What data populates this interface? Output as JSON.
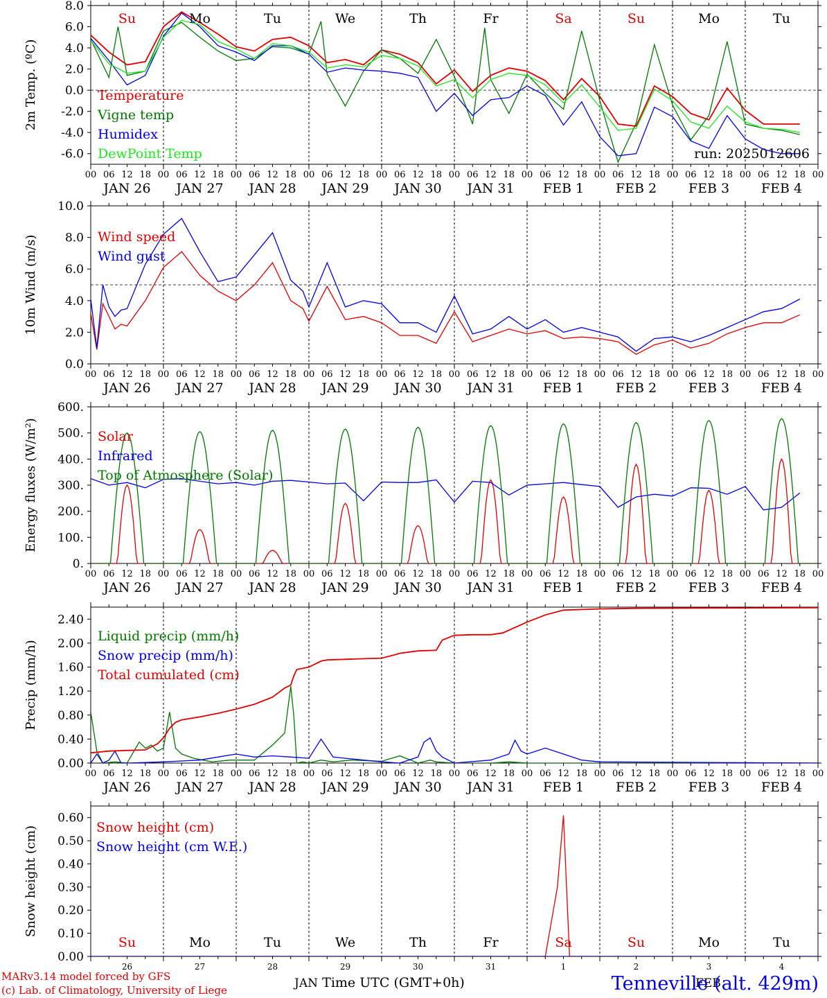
{
  "run_label": "run: 2025012606",
  "time_axis": {
    "hour_ticks": [
      "00",
      "06",
      "12",
      "18"
    ],
    "dates": [
      "JAN 26",
      "JAN 27",
      "JAN 28",
      "JAN 29",
      "JAN 30",
      "JAN 31",
      "FEB  1",
      "FEB  2",
      "FEB  3",
      "FEB  4"
    ],
    "weekdays": [
      "Su",
      "Mo",
      "Tu",
      "We",
      "Th",
      "Fr",
      "Sa",
      "Su",
      "Mo",
      "Tu"
    ],
    "weekday_colors": [
      "#e00000",
      "#000000",
      "#000000",
      "#000000",
      "#000000",
      "#000000",
      "#e00000",
      "#e00000",
      "#000000",
      "#000000"
    ],
    "day_numbers": [
      "26",
      "27",
      "28",
      "29",
      "30",
      "31",
      "1",
      "2",
      "3",
      "4"
    ],
    "month_labels": [
      "JAN",
      "FEB"
    ],
    "xlabel": "Time UTC (GMT+0h)"
  },
  "footer": {
    "model": "MARv3.14 model forced by GFS",
    "credit": "(c) Lab. of Climatology, University of Liege",
    "station": "Tenneville (alt. 429m)"
  },
  "chart_data": [
    {
      "type": "line",
      "ylabel": "2m Temp. (ºC)",
      "ylim": [
        -7,
        8
      ],
      "yticks": [
        "8.0",
        "6.0",
        "4.0",
        "2.0",
        "0.0",
        "-2.0",
        "-4.0",
        "-6.0"
      ],
      "ytick_values": [
        8,
        6,
        4,
        2,
        0,
        -2,
        -4,
        -6
      ],
      "ref_line": 0,
      "x_unit": "hours since JAN 26 00 UTC",
      "series": [
        {
          "name": "Temperature",
          "color": "#e00000",
          "x": [
            0,
            6,
            12,
            18,
            24,
            30,
            36,
            42,
            48,
            54,
            60,
            66,
            72,
            78,
            84,
            90,
            96,
            102,
            108,
            114,
            120,
            126,
            132,
            138,
            144,
            150,
            156,
            162,
            168,
            174,
            180,
            186,
            192,
            198,
            204,
            210,
            216,
            222,
            228,
            234
          ],
          "y": [
            5.2,
            3.6,
            2.4,
            2.7,
            6.0,
            7.4,
            6.4,
            5.3,
            4.1,
            3.7,
            4.8,
            5.0,
            4.2,
            2.6,
            2.9,
            2.4,
            3.8,
            3.4,
            2.6,
            0.6,
            1.9,
            -0.1,
            1.4,
            2.1,
            1.8,
            0.9,
            -0.9,
            1.1,
            -0.6,
            -3.2,
            -3.4,
            0.4,
            -0.6,
            -2.2,
            -2.8,
            0.2,
            -1.9,
            -3.2,
            -3.2,
            -3.2
          ]
        },
        {
          "name": "Vigne temp",
          "color": "#007800",
          "x": [
            0,
            6,
            9,
            12,
            18,
            24,
            30,
            36,
            42,
            48,
            54,
            60,
            66,
            72,
            76,
            78,
            84,
            90,
            96,
            102,
            108,
            114,
            120,
            126,
            130,
            132,
            138,
            144,
            150,
            156,
            162,
            168,
            174,
            180,
            186,
            192,
            198,
            204,
            210,
            216,
            222,
            228,
            234
          ],
          "y": [
            4.8,
            1.2,
            6.0,
            1.4,
            1.8,
            5.6,
            6.4,
            5.0,
            3.7,
            2.8,
            3.0,
            4.1,
            4.0,
            3.4,
            6.5,
            1.5,
            -1.5,
            1.8,
            3.8,
            3.0,
            1.6,
            4.8,
            1.3,
            -3.2,
            5.9,
            1.0,
            -2.2,
            1.5,
            -0.3,
            -1.8,
            5.6,
            -1.0,
            -6.8,
            -3.1,
            4.3,
            -1.4,
            -4.7,
            -2.4,
            4.6,
            -3.2,
            -3.6,
            -3.8,
            -4.2
          ]
        },
        {
          "name": "Humidex",
          "color": "#0000e0",
          "x": [
            0,
            6,
            12,
            18,
            24,
            30,
            36,
            42,
            48,
            54,
            60,
            66,
            72,
            78,
            84,
            90,
            96,
            102,
            108,
            114,
            120,
            126,
            132,
            138,
            144,
            150,
            156,
            162,
            168,
            174,
            180,
            186,
            192,
            198,
            204,
            210,
            216,
            222,
            228,
            234
          ],
          "y": [
            4.9,
            2.8,
            0.5,
            1.4,
            5.1,
            7.3,
            6.0,
            4.2,
            3.6,
            2.8,
            4.2,
            4.2,
            3.4,
            1.7,
            2.1,
            1.9,
            1.8,
            1.6,
            1.2,
            -2.0,
            -0.3,
            -2.4,
            -0.9,
            -0.7,
            0.4,
            -0.5,
            -3.3,
            -1.1,
            -4.4,
            -6.2,
            -6.0,
            -1.6,
            -2.5,
            -4.8,
            -5.5,
            -2.4,
            -4.6,
            -5.6,
            -6.0,
            -6.0
          ]
        },
        {
          "name": "DewPoint Temp",
          "color": "#1ee61e",
          "x": [
            0,
            6,
            12,
            18,
            24,
            30,
            36,
            42,
            48,
            54,
            60,
            66,
            72,
            78,
            84,
            90,
            96,
            102,
            108,
            114,
            120,
            126,
            132,
            138,
            144,
            150,
            156,
            162,
            168,
            174,
            180,
            186,
            192,
            198,
            204,
            210,
            216,
            222,
            228,
            234
          ],
          "y": [
            4.7,
            2.5,
            1.6,
            1.8,
            5.0,
            6.6,
            6.2,
            4.6,
            3.9,
            3.0,
            4.4,
            4.2,
            3.6,
            2.1,
            2.4,
            2.2,
            3.3,
            3.0,
            2.3,
            0.4,
            1.0,
            -0.7,
            1.0,
            1.6,
            1.4,
            0.5,
            -1.2,
            0.5,
            -1.6,
            -3.8,
            -3.6,
            0.1,
            -1.0,
            -3.0,
            -3.6,
            -1.5,
            -3.0,
            -3.6,
            -3.7,
            -4.0
          ]
        }
      ]
    },
    {
      "type": "line",
      "ylabel": "10m Wind (m/s)",
      "ylim": [
        0,
        10
      ],
      "yticks": [
        "10.0",
        "8.0",
        "6.0",
        "4.0",
        "2.0",
        "0.0"
      ],
      "ytick_values": [
        10,
        8,
        6,
        4,
        2,
        0
      ],
      "ref_line": 5,
      "x_unit": "hours since JAN 26 00 UTC",
      "series": [
        {
          "name": "Wind speed",
          "color": "#e00000",
          "x": [
            0,
            2,
            4,
            6,
            8,
            10,
            12,
            18,
            24,
            30,
            36,
            42,
            48,
            54,
            60,
            66,
            70,
            72,
            78,
            84,
            90,
            96,
            102,
            108,
            114,
            120,
            126,
            132,
            138,
            144,
            150,
            156,
            162,
            168,
            174,
            180,
            186,
            192,
            198,
            204,
            210,
            216,
            222,
            228,
            234
          ],
          "y": [
            3.2,
            0.9,
            3.8,
            3.0,
            2.2,
            2.5,
            2.4,
            4.0,
            6.1,
            7.1,
            5.6,
            4.6,
            4.0,
            5.0,
            6.4,
            4.0,
            3.5,
            2.7,
            4.9,
            2.8,
            3.0,
            2.6,
            1.8,
            1.8,
            1.3,
            3.3,
            1.4,
            1.8,
            2.2,
            1.9,
            2.1,
            1.6,
            1.7,
            1.6,
            1.4,
            0.6,
            1.2,
            1.5,
            1.0,
            1.3,
            1.9,
            2.3,
            2.6,
            2.6,
            3.1
          ]
        },
        {
          "name": "Wind gust",
          "color": "#0000e0",
          "x": [
            0,
            2,
            4,
            6,
            8,
            10,
            12,
            18,
            24,
            30,
            36,
            42,
            48,
            54,
            60,
            66,
            70,
            72,
            78,
            84,
            90,
            96,
            102,
            108,
            114,
            120,
            126,
            132,
            138,
            144,
            150,
            156,
            162,
            168,
            174,
            180,
            186,
            192,
            198,
            204,
            210,
            216,
            222,
            228,
            234
          ],
          "y": [
            4.1,
            1.0,
            5.0,
            3.6,
            3.0,
            3.4,
            3.5,
            6.3,
            8.2,
            9.2,
            7.1,
            5.2,
            5.5,
            6.9,
            8.3,
            5.3,
            4.6,
            3.6,
            6.4,
            3.6,
            4.0,
            3.8,
            2.6,
            2.6,
            2.0,
            4.3,
            1.9,
            2.2,
            3.0,
            2.2,
            2.8,
            2.0,
            2.3,
            2.0,
            1.7,
            0.8,
            1.6,
            1.7,
            1.4,
            1.8,
            2.3,
            2.8,
            3.3,
            3.5,
            4.1
          ]
        }
      ]
    },
    {
      "type": "line",
      "ylabel": "Energy fluxes (W/m²)",
      "ylim": [
        0,
        600
      ],
      "yticks": [
        "600.",
        "500.",
        "400.",
        "300.",
        "200.",
        "100.",
        "0."
      ],
      "ytick_values": [
        600,
        500,
        400,
        300,
        200,
        100,
        0
      ],
      "x_unit": "hours since JAN 26 00 UTC",
      "series": [
        {
          "name": "Solar",
          "color": "#e00000",
          "peaks": [
            300,
            130,
            50,
            230,
            145,
            320,
            255,
            380,
            280,
            400
          ]
        },
        {
          "name": "Infrared",
          "color": "#0000e0",
          "x": [
            0,
            6,
            12,
            18,
            24,
            30,
            36,
            42,
            48,
            54,
            60,
            66,
            72,
            78,
            84,
            90,
            96,
            102,
            108,
            114,
            120,
            126,
            132,
            138,
            144,
            150,
            156,
            162,
            168,
            174,
            180,
            186,
            192,
            198,
            204,
            210,
            216,
            222,
            228,
            234
          ],
          "y": [
            325,
            300,
            310,
            290,
            322,
            325,
            315,
            305,
            310,
            300,
            315,
            318,
            312,
            305,
            308,
            240,
            312,
            310,
            310,
            320,
            235,
            315,
            310,
            262,
            300,
            305,
            310,
            302,
            295,
            215,
            255,
            265,
            258,
            290,
            288,
            265,
            295,
            205,
            215,
            270
          ]
        },
        {
          "name": "Top of Atmosphere (Solar)",
          "color": "#007800",
          "peaks": [
            500,
            505,
            510,
            515,
            522,
            528,
            535,
            540,
            548,
            555
          ]
        }
      ]
    },
    {
      "type": "line",
      "ylabel": "Precip (mm/h)",
      "ylim": [
        0,
        2.6
      ],
      "yticks": [
        "2.40",
        "2.00",
        "1.60",
        "1.20",
        "0.80",
        "0.40",
        "0.00"
      ],
      "ytick_values": [
        2.4,
        2.0,
        1.6,
        1.2,
        0.8,
        0.4,
        0.0
      ],
      "x_unit": "hours since JAN 26 00 UTC",
      "series": [
        {
          "name": "Liquid precip (mm/h)",
          "color": "#007800",
          "x": [
            0,
            2,
            4,
            8,
            12,
            16,
            18,
            20,
            22,
            24,
            26,
            28,
            30,
            34,
            40,
            46,
            54,
            60,
            62,
            64,
            66,
            67,
            68,
            70,
            72,
            76,
            80,
            86,
            96,
            102,
            108,
            112,
            114,
            120,
            126,
            132,
            138,
            144,
            240
          ],
          "y": [
            0.85,
            0.2,
            0.0,
            0.02,
            0.0,
            0.35,
            0.25,
            0.3,
            0.2,
            0.25,
            0.85,
            0.25,
            0.15,
            0.08,
            0.02,
            0.05,
            0.05,
            0.3,
            0.4,
            0.5,
            1.28,
            0.8,
            0.0,
            0.02,
            0.0,
            0.05,
            0.02,
            0.05,
            0.03,
            0.12,
            0.0,
            0.05,
            0.02,
            0.0,
            0.0,
            0.0,
            0.02,
            0.0,
            0.0
          ]
        },
        {
          "name": "Snow precip (mm/h)",
          "color": "#0000e0",
          "x": [
            0,
            2,
            4,
            6,
            8,
            10,
            12,
            24,
            36,
            42,
            48,
            54,
            60,
            66,
            72,
            76,
            80,
            84,
            90,
            96,
            102,
            108,
            110,
            112,
            114,
            116,
            120,
            132,
            138,
            140,
            142,
            144,
            150,
            156,
            162,
            168,
            240
          ],
          "y": [
            0.0,
            0.15,
            0.0,
            0.05,
            0.2,
            0.0,
            0.0,
            0.02,
            0.05,
            0.1,
            0.15,
            0.1,
            0.12,
            0.1,
            0.08,
            0.4,
            0.1,
            0.08,
            0.05,
            0.02,
            0.0,
            0.1,
            0.35,
            0.42,
            0.2,
            0.1,
            0.0,
            0.05,
            0.15,
            0.38,
            0.2,
            0.15,
            0.25,
            0.15,
            0.05,
            0.02,
            0.0
          ]
        },
        {
          "name": "Total cumulated (cm)",
          "color": "#e00000",
          "x": [
            0,
            6,
            12,
            18,
            22,
            24,
            26,
            28,
            30,
            36,
            42,
            48,
            54,
            60,
            64,
            66,
            67,
            68,
            72,
            76,
            78,
            84,
            96,
            100,
            102,
            108,
            114,
            116,
            120,
            126,
            132,
            136,
            144,
            150,
            156,
            168,
            180,
            240
          ],
          "y": [
            0.17,
            0.2,
            0.21,
            0.22,
            0.32,
            0.42,
            0.58,
            0.68,
            0.72,
            0.77,
            0.83,
            0.9,
            0.98,
            1.1,
            1.25,
            1.3,
            1.45,
            1.56,
            1.6,
            1.7,
            1.72,
            1.73,
            1.75,
            1.8,
            1.83,
            1.87,
            1.88,
            2.05,
            2.13,
            2.14,
            2.14,
            2.17,
            2.35,
            2.47,
            2.55,
            2.57,
            2.58,
            2.59
          ]
        }
      ]
    },
    {
      "type": "line",
      "ylabel": "Snow height (cm)",
      "ylim": [
        0,
        0.65
      ],
      "yticks": [
        "0.60",
        "0.50",
        "0.40",
        "0.30",
        "0.20",
        "0.10",
        "0.00"
      ],
      "ytick_values": [
        0.6,
        0.5,
        0.4,
        0.3,
        0.2,
        0.1,
        0.0
      ],
      "x_unit": "hours since JAN 26 00 UTC",
      "series": [
        {
          "name": "Snow height (cm)",
          "color": "#e00000",
          "x": [
            0,
            150,
            154,
            156,
            158,
            240
          ],
          "y": [
            0,
            0,
            0.3,
            0.61,
            0,
            0
          ]
        },
        {
          "name": "Snow height (cm W.E.)",
          "color": "#0000e0",
          "x": [
            0,
            240
          ],
          "y": [
            0,
            0
          ]
        }
      ]
    }
  ]
}
